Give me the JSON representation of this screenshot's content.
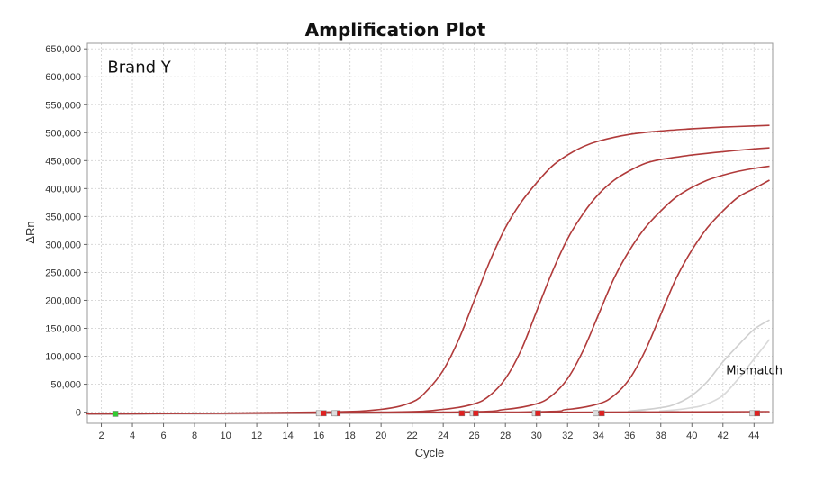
{
  "chart_data": {
    "type": "line",
    "title": "Amplification Plot",
    "xlabel": "Cycle",
    "ylabel": "ΔRn",
    "xlim": [
      1.1,
      45.2
    ],
    "ylim": [
      -20000,
      660000
    ],
    "xticks": [
      2,
      4,
      6,
      8,
      10,
      12,
      14,
      16,
      18,
      20,
      22,
      24,
      26,
      28,
      30,
      32,
      34,
      36,
      38,
      40,
      42,
      44
    ],
    "yticks": [
      0,
      50000,
      100000,
      150000,
      200000,
      250000,
      300000,
      350000,
      400000,
      450000,
      500000,
      550000,
      600000,
      650000
    ],
    "ytick_labels": [
      "0",
      "50,000",
      "100,000",
      "150,000",
      "200,000",
      "250,000",
      "300,000",
      "350,000",
      "400,000",
      "450,000",
      "500,000",
      "550,000",
      "600,000",
      "650,000"
    ],
    "grid": true,
    "series": [
      {
        "color": "#b03a3a",
        "x": [
          1,
          16,
          20,
          22,
          23,
          24,
          25,
          26,
          27,
          28,
          29,
          30,
          31,
          32,
          33,
          34,
          36,
          38,
          40,
          42,
          44,
          45
        ],
        "values": [
          -4000,
          0,
          5000,
          18000,
          40000,
          75000,
          130000,
          200000,
          270000,
          330000,
          375000,
          410000,
          440000,
          460000,
          475000,
          485000,
          497000,
          503000,
          507000,
          510000,
          512000,
          513000
        ]
      },
      {
        "color": "#b03a3a",
        "x": [
          1,
          20,
          24,
          26,
          27,
          28,
          29,
          30,
          31,
          32,
          33,
          34,
          35,
          36,
          37,
          38,
          40,
          42,
          44,
          45
        ],
        "values": [
          -4000,
          0,
          5000,
          15000,
          30000,
          60000,
          110000,
          180000,
          250000,
          310000,
          355000,
          390000,
          415000,
          432000,
          445000,
          452000,
          460000,
          466000,
          471000,
          473000
        ]
      },
      {
        "color": "#b03a3a",
        "x": [
          1,
          24,
          28,
          30,
          31,
          32,
          33,
          34,
          35,
          36,
          37,
          38,
          39,
          40,
          41,
          42,
          43,
          44,
          45
        ],
        "values": [
          -4000,
          0,
          5000,
          15000,
          30000,
          60000,
          110000,
          175000,
          240000,
          290000,
          330000,
          360000,
          385000,
          402000,
          415000,
          424000,
          431000,
          436000,
          440000
        ]
      },
      {
        "color": "#b03a3a",
        "x": [
          1,
          28,
          32,
          34,
          35,
          36,
          37,
          38,
          39,
          40,
          41,
          42,
          43,
          44,
          45
        ],
        "values": [
          -4000,
          0,
          5000,
          15000,
          30000,
          60000,
          110000,
          175000,
          240000,
          290000,
          330000,
          360000,
          385000,
          400000,
          415000
        ]
      },
      {
        "color": "#cfcfcf",
        "x": [
          1,
          34,
          36,
          38,
          39,
          40,
          41,
          42,
          43,
          44,
          45
        ],
        "values": [
          -4000,
          0,
          2000,
          8000,
          15000,
          30000,
          55000,
          90000,
          120000,
          148000,
          165000
        ]
      },
      {
        "color": "#d9d9d9",
        "x": [
          1,
          36,
          38,
          40,
          41,
          42,
          43,
          44,
          45
        ],
        "values": [
          -4000,
          0,
          2000,
          8000,
          15000,
          30000,
          60000,
          95000,
          130000
        ]
      },
      {
        "color": "#b03a3a",
        "x": [
          1,
          45
        ],
        "values": [
          -3000,
          1000
        ]
      }
    ],
    "annotations": [
      {
        "text": "Brand Y",
        "x": 2.4,
        "y": 608000,
        "size": "large"
      },
      {
        "text": "Mismatch",
        "x": 42.2,
        "y": 68000,
        "size": "small"
      }
    ],
    "markers": [
      {
        "x": 2.9,
        "y": -3000,
        "color": "#33cc33"
      },
      {
        "x": 16.0,
        "y": -2000,
        "color": "#dddddd"
      },
      {
        "x": 16.3,
        "y": -2000,
        "color": "#e02020"
      },
      {
        "x": 17.2,
        "y": -2000,
        "color": "#e02020"
      },
      {
        "x": 17.0,
        "y": -2000,
        "color": "#dddddd"
      },
      {
        "x": 25.2,
        "y": -2000,
        "color": "#e02020"
      },
      {
        "x": 25.9,
        "y": -2000,
        "color": "#dddddd"
      },
      {
        "x": 26.1,
        "y": -2000,
        "color": "#e02020"
      },
      {
        "x": 29.9,
        "y": -2000,
        "color": "#dddddd"
      },
      {
        "x": 30.1,
        "y": -2000,
        "color": "#e02020"
      },
      {
        "x": 33.8,
        "y": -2000,
        "color": "#dddddd"
      },
      {
        "x": 34.2,
        "y": -2000,
        "color": "#e02020"
      },
      {
        "x": 43.9,
        "y": -2000,
        "color": "#dddddd"
      },
      {
        "x": 44.2,
        "y": -2000,
        "color": "#e02020"
      }
    ]
  }
}
